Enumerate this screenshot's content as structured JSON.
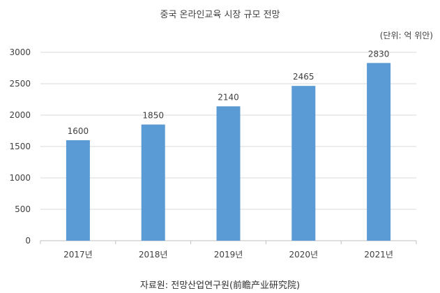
{
  "chart_data": {
    "type": "bar",
    "title": "중국 온라인교육 시장 규모 전망",
    "unit_label": "(단위: 억 위안)",
    "categories": [
      "2017년",
      "2018년",
      "2019년",
      "2020년",
      "2021년"
    ],
    "values": [
      1600,
      1850,
      2140,
      2465,
      2830
    ],
    "data_labels": [
      "1600",
      "1850",
      "2140",
      "2465",
      "2830"
    ],
    "ylim": [
      0,
      3000
    ],
    "yticks": [
      0,
      500,
      1000,
      1500,
      2000,
      2500,
      3000
    ],
    "grid": true,
    "legend": "none",
    "bar_color": "#5B9BD5",
    "grid_color": "#D9D9D9"
  },
  "source": "자료원: 전망산업연구원(前瞻产业研究院)"
}
